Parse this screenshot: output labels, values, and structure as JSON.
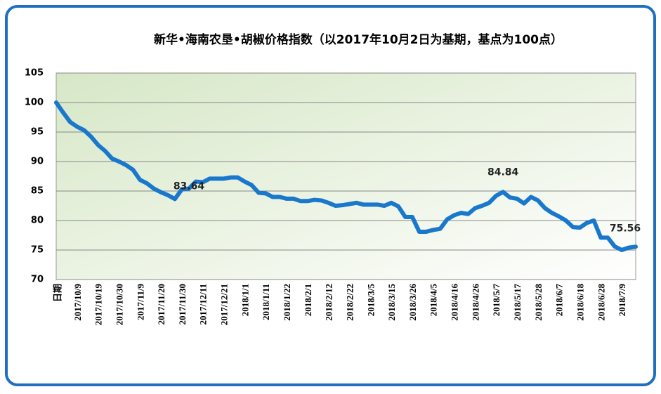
{
  "chart_data": {
    "type": "line",
    "title": "新华•海南农垦•胡椒价格指数（以2017年10月2日为基期，基点为100点）",
    "categories": [
      "日期",
      null,
      null,
      "2017/10/9",
      null,
      null,
      "2017/10/19",
      null,
      null,
      "2017/10/30",
      null,
      null,
      "2017/11/9",
      null,
      null,
      "2017/11/20",
      null,
      null,
      "2017/11/30",
      null,
      null,
      "2017/12/11",
      null,
      null,
      "2017/12/21",
      null,
      null,
      "2018/1/1",
      null,
      null,
      "2018/1/11",
      null,
      null,
      "2018/1/22",
      null,
      null,
      "2018/2/1",
      null,
      null,
      "2018/2/12",
      null,
      null,
      "2018/2/22",
      null,
      null,
      "2018/3/5",
      null,
      null,
      "2018/3/15",
      null,
      null,
      "2018/3/26",
      null,
      null,
      "2018/4/5",
      null,
      null,
      "2018/4/16",
      null,
      null,
      "2018/4/26",
      null,
      null,
      "2018/5/7",
      null,
      null,
      "2018/5/17",
      null,
      null,
      "2018/5/28",
      null,
      null,
      "2018/6/7",
      null,
      null,
      "2018/6/18",
      null,
      null,
      "2018/6/28",
      null,
      null,
      "2018/7/9",
      null,
      null
    ],
    "series": [
      {
        "color": "#1a78cc",
        "values": [
          100,
          98.3,
          96.7,
          95.9,
          95.3,
          94.2,
          92.8,
          91.8,
          90.5,
          90.0,
          89.4,
          88.6,
          86.9,
          86.3,
          85.4,
          84.8,
          84.3,
          83.64,
          85.3,
          85.4,
          86.6,
          86.5,
          87.1,
          87.1,
          87.1,
          87.3,
          87.3,
          86.6,
          86.0,
          84.7,
          84.6,
          84.0,
          84.0,
          83.7,
          83.7,
          83.3,
          83.3,
          83.5,
          83.4,
          83.0,
          82.5,
          82.6,
          82.8,
          83.0,
          82.7,
          82.7,
          82.7,
          82.5,
          83.0,
          82.4,
          80.6,
          80.6,
          78.1,
          78.1,
          78.4,
          78.6,
          80.2,
          80.9,
          81.3,
          81.1,
          82.1,
          82.5,
          83.0,
          84.2,
          84.84,
          83.9,
          83.7,
          82.9,
          84.0,
          83.4,
          82.1,
          81.3,
          80.7,
          80.0,
          78.9,
          78.8,
          79.6,
          80.0,
          77.1,
          77.1,
          75.6,
          75.0,
          75.4,
          75.56
        ]
      }
    ],
    "ylim": [
      70,
      105
    ],
    "yticks": [
      70,
      75,
      80,
      85,
      90,
      95,
      100,
      105
    ],
    "grid": true
  }
}
